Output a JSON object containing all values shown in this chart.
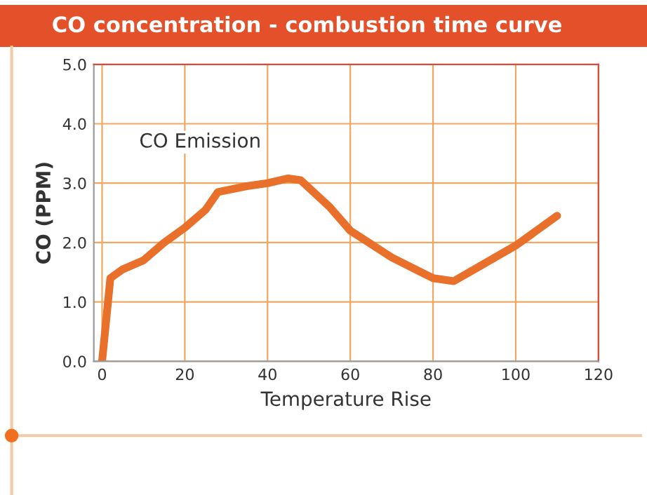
{
  "chart_data": {
    "type": "line",
    "title": "CO concentration - combustion time curve",
    "xlabel": "Temperature Rise",
    "ylabel": "CO (PPM)",
    "series": [
      {
        "name": "CO Emission",
        "color": "#e8702a",
        "x": [
          0,
          2,
          5,
          10,
          15,
          20,
          25,
          28,
          35,
          40,
          45,
          48,
          55,
          60,
          70,
          80,
          85,
          90,
          100,
          110
        ],
        "values": [
          0,
          1.4,
          1.55,
          1.7,
          2.0,
          2.25,
          2.55,
          2.85,
          2.95,
          3.0,
          3.08,
          3.05,
          2.6,
          2.2,
          1.75,
          1.4,
          1.35,
          1.55,
          1.95,
          2.45
        ]
      }
    ],
    "xlim": [
      -2,
      120
    ],
    "xticks": [
      0,
      20,
      40,
      60,
      80,
      100,
      120
    ],
    "ylim": [
      0,
      5
    ],
    "yticks": [
      {
        "value": 0,
        "label": "0.0"
      },
      {
        "value": 1,
        "label": "1.0"
      },
      {
        "value": 2,
        "label": "2.0"
      },
      {
        "value": 3,
        "label": "3.0"
      },
      {
        "value": 4,
        "label": "4.0"
      },
      {
        "value": 5,
        "label": "5.0"
      }
    ],
    "grid": true,
    "marker": "none",
    "line_style": "solid",
    "legend": false
  }
}
